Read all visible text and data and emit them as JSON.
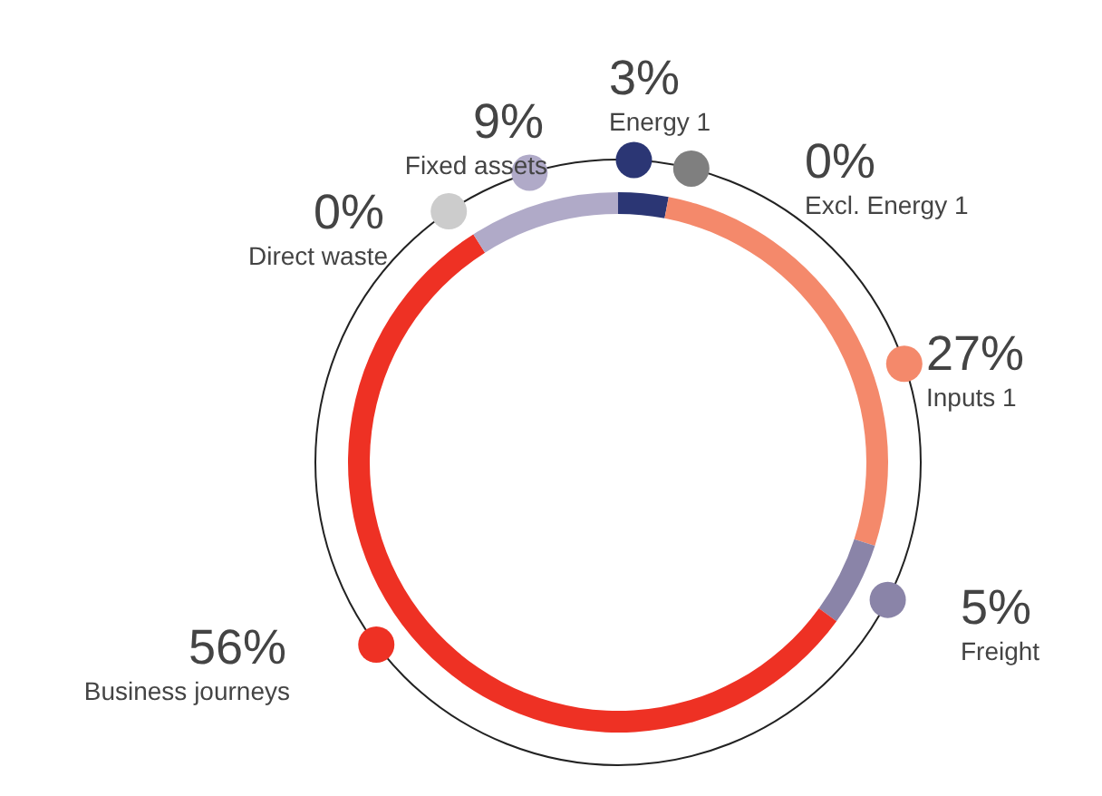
{
  "chart_data": {
    "type": "donut",
    "categories": [
      "Energy 1",
      "Excl. Energy 1",
      "Inputs 1",
      "Freight",
      "Business journeys",
      "Direct waste",
      "Fixed assets"
    ],
    "values": [
      3,
      0,
      27,
      5,
      56,
      0,
      9
    ],
    "value_labels": [
      "3%",
      "0%",
      "27%",
      "5%",
      "56%",
      "0%",
      "9%"
    ],
    "colors": [
      "#2b3674",
      "#7f7f7f",
      "#f4896b",
      "#8a84a8",
      "#ee3124",
      "#cccccc",
      "#b0aac8"
    ],
    "legend": "right"
  }
}
